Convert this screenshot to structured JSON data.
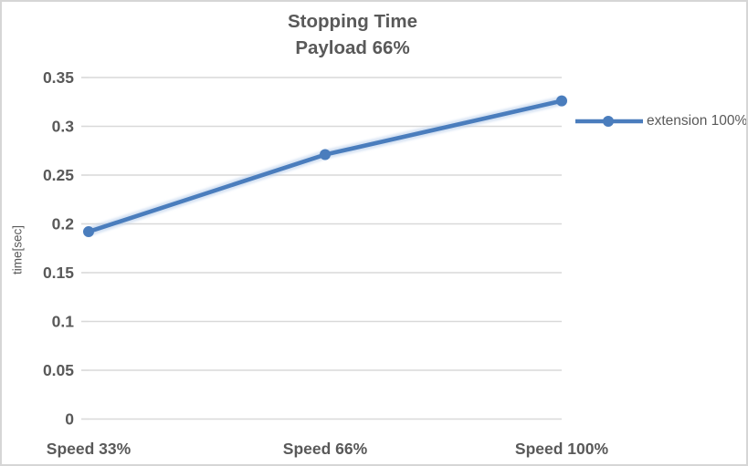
{
  "chart_data": {
    "type": "line",
    "title": "Stopping Time",
    "subtitle": "Payload 66%",
    "categories": [
      "Speed 33%",
      "Speed 66%",
      "Speed 100%"
    ],
    "series": [
      {
        "name": "extension 100%",
        "values": [
          0.192,
          0.271,
          0.326
        ]
      }
    ],
    "xlabel": "",
    "ylabel": "time[sec]",
    "ylim": [
      0,
      0.35
    ],
    "ytick_step": 0.05,
    "ytick_labels": [
      "0",
      "0.05",
      "0.1",
      "0.15",
      "0.2",
      "0.25",
      "0.3",
      "0.35"
    ],
    "grid": true,
    "legend_position": "right",
    "marker": "circle",
    "colors": {
      "line": "#4a7dbd",
      "glow": "#b9cfeb",
      "text": "#595959",
      "grid": "#d9d9d9",
      "border": "#d6d6d6",
      "background": "#ffffff"
    }
  }
}
